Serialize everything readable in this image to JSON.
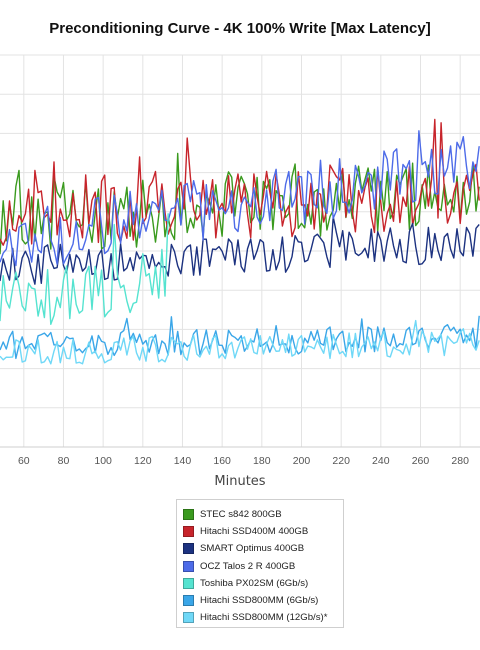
{
  "chart_data": {
    "type": "line",
    "title": "Preconditioning Curve - 4K 100% Write [Max Latency]",
    "xlabel": "Minutes",
    "ylabel": "",
    "xlim": [
      48,
      290
    ],
    "ylim": [
      0,
      10
    ],
    "x_ticks": [
      60,
      80,
      100,
      120,
      140,
      160,
      180,
      200,
      220,
      240,
      260,
      280
    ],
    "grid": true,
    "legend_position": "bottom-center",
    "series": [
      {
        "name": "STEC s842 800GB",
        "color": "#3a9a1e",
        "x": [
          48,
          290
        ],
        "values": [
          5.8,
          6.5
        ],
        "noise": 0.9
      },
      {
        "name": "Hitachi SSD400M 400GB",
        "color": "#c7242b",
        "x": [
          48,
          290
        ],
        "values": [
          6.0,
          6.4
        ],
        "noise": 0.9
      },
      {
        "name": "SMART Optimus 400GB",
        "color": "#1c3280",
        "x": [
          48,
          290
        ],
        "values": [
          4.6,
          5.2
        ],
        "noise": 0.5
      },
      {
        "name": "OCZ Talos 2 R 400GB",
        "color": "#4d6be8",
        "x": [
          48,
          290
        ],
        "values": [
          5.2,
          7.2
        ],
        "noise": 0.8
      },
      {
        "name": "Toshiba PX02SM (6Gb/s)",
        "color": "#55e3d0",
        "x": [
          48,
          134
        ],
        "values": [
          3.6,
          4.4
        ],
        "noise": 0.8
      },
      {
        "name": "Hitachi SSD800MM (6Gb/s)",
        "color": "#3aa6e8",
        "x": [
          48,
          290
        ],
        "values": [
          2.6,
          2.8
        ],
        "noise": 0.35
      },
      {
        "name": "Hitachi SSD800MM (12Gb/s)*",
        "color": "#6fd8f7",
        "x": [
          48,
          290
        ],
        "values": [
          2.4,
          2.7
        ],
        "noise": 0.35
      }
    ]
  }
}
